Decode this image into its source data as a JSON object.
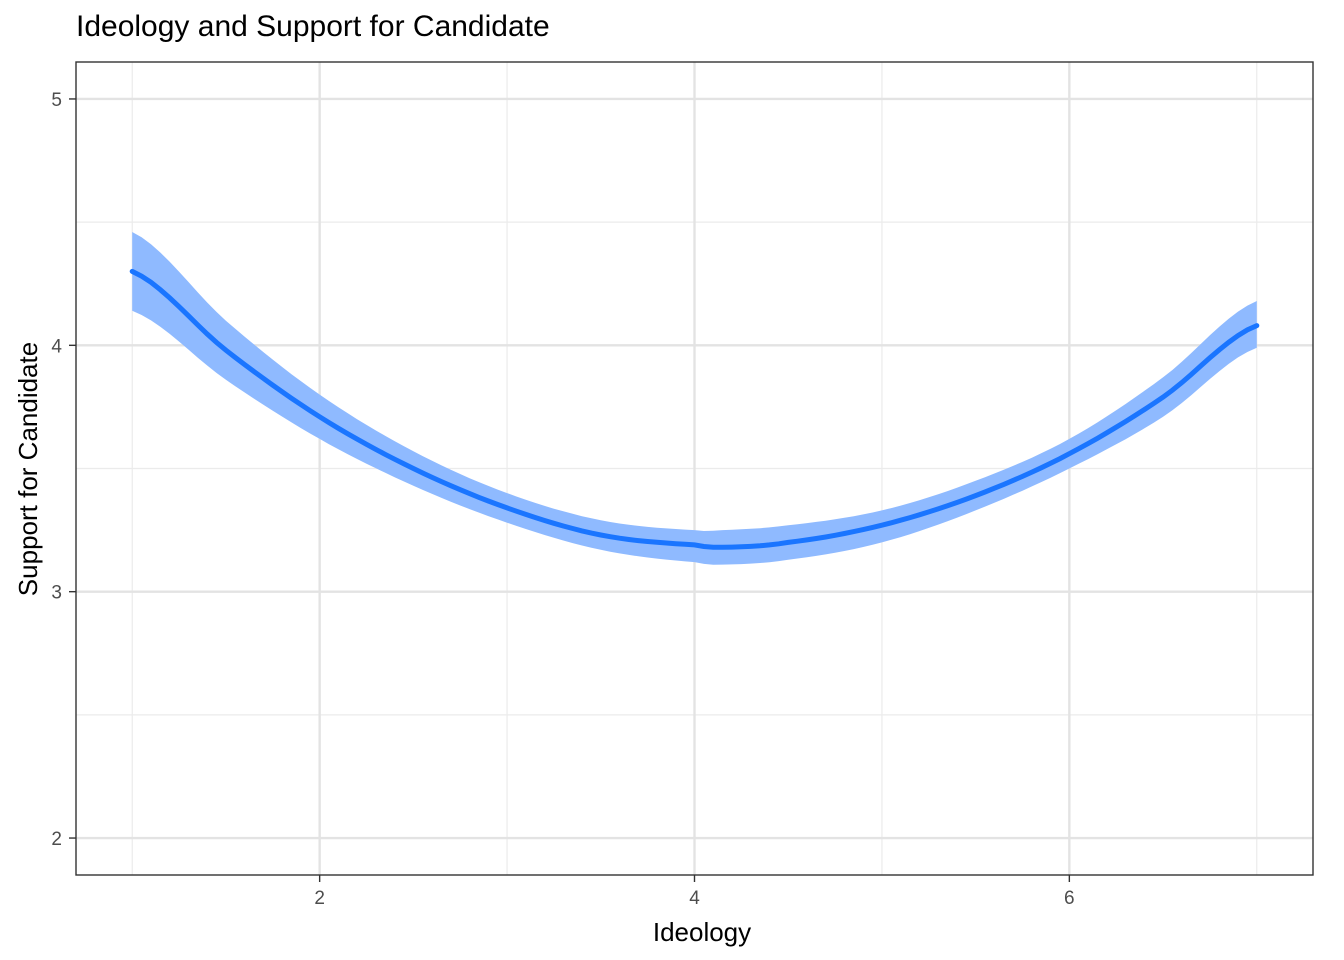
{
  "chart_data": {
    "type": "line",
    "title": "Ideology and Support for Candidate",
    "xlabel": "Ideology",
    "ylabel": "Support for Candidate",
    "xlim": [
      0.7,
      7.3
    ],
    "ylim": [
      1.85,
      5.15
    ],
    "x_ticks": [
      2,
      4,
      6
    ],
    "y_ticks": [
      2,
      3,
      4,
      5
    ],
    "grid": true,
    "legend": "none",
    "line_color": "#1a75ff",
    "band_color": "#8fbaff",
    "series": [
      {
        "x": [
          1.0,
          1.5,
          2.0,
          2.5,
          3.0,
          3.5,
          4.0,
          4.15,
          4.5,
          5.0,
          5.5,
          6.0,
          6.5,
          7.0
        ],
        "y": [
          4.3,
          3.98,
          3.71,
          3.5,
          3.34,
          3.23,
          3.19,
          3.18,
          3.2,
          3.27,
          3.39,
          3.56,
          3.79,
          4.08
        ],
        "lower": [
          4.14,
          3.86,
          3.62,
          3.43,
          3.28,
          3.17,
          3.12,
          3.11,
          3.13,
          3.2,
          3.33,
          3.5,
          3.71,
          3.99
        ],
        "upper": [
          4.46,
          4.1,
          3.8,
          3.57,
          3.4,
          3.29,
          3.25,
          3.25,
          3.27,
          3.33,
          3.45,
          3.62,
          3.87,
          4.18
        ]
      }
    ]
  }
}
